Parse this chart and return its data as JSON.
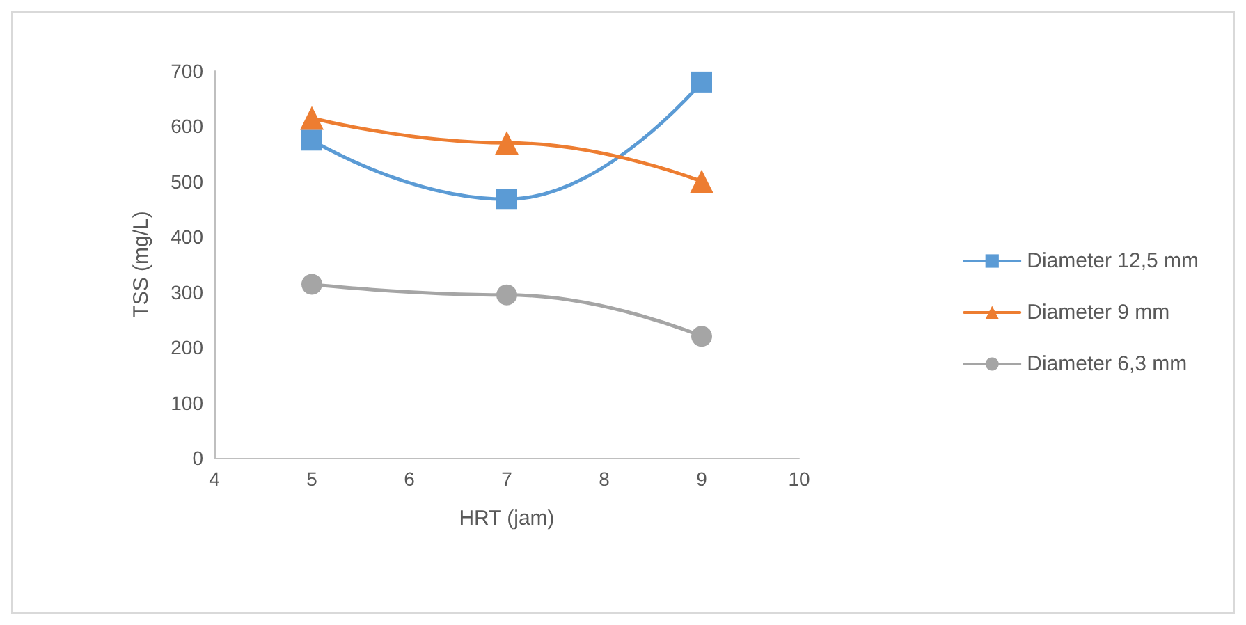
{
  "chart_data": {
    "type": "line",
    "xlabel": "HRT (jam)",
    "ylabel": "TSS (mg/L)",
    "x": [
      5,
      7,
      9
    ],
    "series": [
      {
        "name": "Diameter 12,5 mm",
        "color": "#5b9bd5",
        "marker": "square",
        "values": [
          575,
          468,
          680
        ]
      },
      {
        "name": "Diameter 9 mm",
        "color": "#ed7d31",
        "marker": "triangle",
        "values": [
          615,
          570,
          500
        ]
      },
      {
        "name": "Diameter 6,3 mm",
        "color": "#a5a5a5",
        "marker": "circle",
        "values": [
          314,
          295,
          220
        ]
      }
    ],
    "xlim": [
      4,
      10
    ],
    "xticks": [
      4,
      5,
      6,
      7,
      8,
      9,
      10
    ],
    "ylim": [
      0,
      700
    ],
    "yticks": [
      0,
      100,
      200,
      300,
      400,
      500,
      600,
      700
    ],
    "grid": false,
    "legend": "right",
    "line_style": "solid"
  }
}
